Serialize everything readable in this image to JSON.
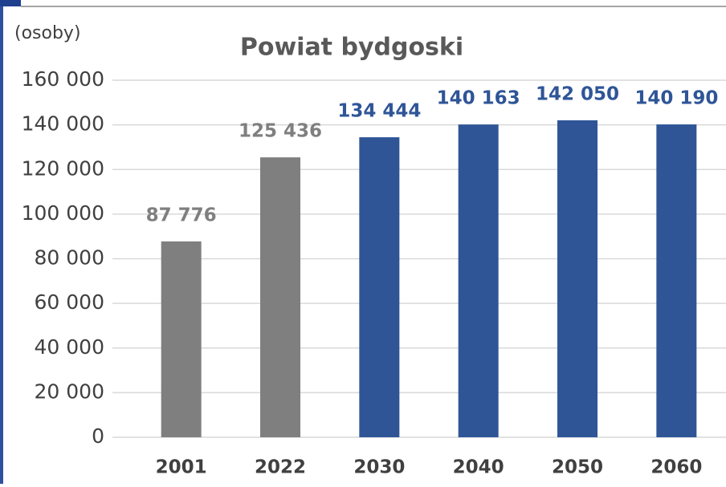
{
  "chart_data": {
    "type": "bar",
    "title": "Powiat bydgoski",
    "y_axis_label": "(osoby)",
    "categories": [
      "2001",
      "2022",
      "2030",
      "2040",
      "2050",
      "2060"
    ],
    "values": [
      87776,
      125436,
      134444,
      140163,
      142050,
      140190
    ],
    "value_labels": [
      "87 776",
      "125 436",
      "134 444",
      "140 163",
      "142 050",
      "140 190"
    ],
    "colors": [
      "#7f7f7f",
      "#7f7f7f",
      "#2f5597",
      "#2f5597",
      "#2f5597",
      "#2f5597"
    ],
    "ylim": [
      0,
      160000
    ],
    "yticks": [
      0,
      {
        "value": 20000,
        "label": "20 000"
      },
      {
        "value": 40000,
        "label": "40 000"
      },
      {
        "value": 60000,
        "label": "60 000"
      },
      {
        "value": 80000,
        "label": "80 000"
      },
      {
        "value": 100000,
        "label": "100 000"
      },
      {
        "value": 120000,
        "label": "120 000"
      },
      {
        "value": 140000,
        "label": "140 000"
      },
      {
        "value": 160000,
        "label": "160 000"
      }
    ],
    "grid": true
  }
}
